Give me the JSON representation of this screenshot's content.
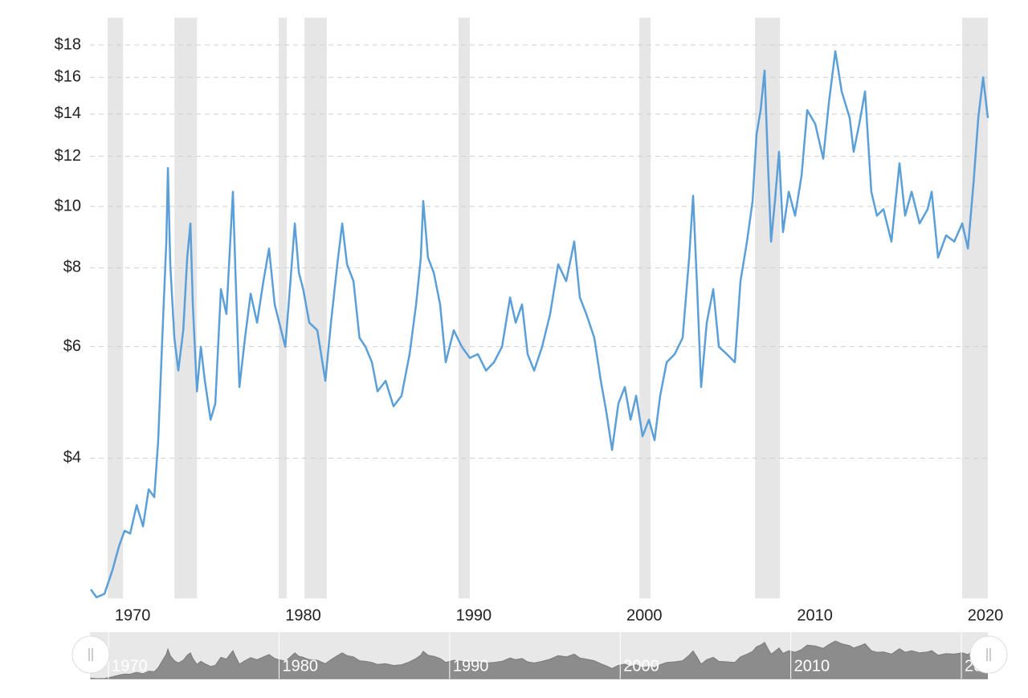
{
  "chart_data": {
    "type": "line",
    "log_scale": true,
    "grid": true,
    "color": "#5b9fd8",
    "shade_color": "#e6e6e6",
    "xlim": [
      1967.5,
      2020.14
    ],
    "ylim": [
      2.4,
      20
    ],
    "xticks": [
      1970,
      1980,
      1990,
      2000,
      2010,
      2020
    ],
    "yticks": [
      {
        "value": 4,
        "label": "$4"
      },
      {
        "value": 6,
        "label": "$6"
      },
      {
        "value": 8,
        "label": "$8"
      },
      {
        "value": 10,
        "label": "$10"
      },
      {
        "value": 12,
        "label": "$12"
      },
      {
        "value": 14,
        "label": "$14"
      },
      {
        "value": 16,
        "label": "$16"
      },
      {
        "value": 18,
        "label": "$18"
      }
    ],
    "recessions": [
      [
        1968.54,
        1969.44
      ],
      [
        1972.45,
        1973.77
      ],
      [
        1978.57,
        1979.04
      ],
      [
        1980.08,
        1981.39
      ],
      [
        1989.11,
        1989.77
      ],
      [
        1999.71,
        2000.37
      ],
      [
        2006.49,
        2007.95
      ],
      [
        2018.63,
        2020.14
      ]
    ],
    "x": [
      1967.55,
      1967.88,
      1968.35,
      1968.82,
      1969.2,
      1969.53,
      1969.86,
      1970.24,
      1970.61,
      1970.94,
      1971.27,
      1971.5,
      1971.74,
      1971.98,
      1972.07,
      1972.21,
      1972.45,
      1972.68,
      1972.97,
      1973.2,
      1973.39,
      1973.53,
      1973.77,
      1974.0,
      1974.24,
      1974.57,
      1974.85,
      1975.18,
      1975.5,
      1975.88,
      1976.03,
      1976.26,
      1976.59,
      1976.92,
      1977.3,
      1977.67,
      1978.0,
      1978.33,
      1978.71,
      1978.95,
      1979.18,
      1979.51,
      1979.75,
      1980.0,
      1980.36,
      1980.83,
      1981.3,
      1981.63,
      1982.0,
      1982.29,
      1982.57,
      1982.95,
      1983.3,
      1983.65,
      1984.03,
      1984.36,
      1984.83,
      1985.3,
      1985.77,
      1986.24,
      1986.62,
      1986.9,
      1987.04,
      1987.32,
      1987.66,
      1988.03,
      1988.36,
      1988.83,
      1989.3,
      1989.77,
      1990.24,
      1990.72,
      1991.19,
      1991.66,
      1992.13,
      1992.46,
      1992.83,
      1993.16,
      1993.54,
      1994.01,
      1994.48,
      1994.95,
      1995.42,
      1995.89,
      1996.22,
      1996.6,
      1997.07,
      1997.45,
      1997.78,
      1998.11,
      1998.48,
      1998.86,
      1999.19,
      1999.52,
      1999.9,
      2000.27,
      2000.6,
      2000.93,
      2001.31,
      2001.78,
      2002.25,
      2002.63,
      2002.86,
      2003.1,
      2003.33,
      2003.66,
      2004.04,
      2004.37,
      2004.84,
      2005.31,
      2005.64,
      2006.02,
      2006.35,
      2006.58,
      2006.82,
      2007.05,
      2007.24,
      2007.43,
      2007.66,
      2007.9,
      2008.13,
      2008.47,
      2008.84,
      2009.22,
      2009.55,
      2010.02,
      2010.49,
      2010.82,
      2011.2,
      2011.57,
      2012.04,
      2012.27,
      2012.6,
      2012.94,
      2013.31,
      2013.64,
      2014.02,
      2014.49,
      2014.96,
      2015.29,
      2015.67,
      2016.14,
      2016.61,
      2016.85,
      2017.22,
      2017.69,
      2018.17,
      2018.64,
      2018.97,
      2019.3,
      2019.58,
      2019.86,
      2020.14
    ],
    "values": [
      2.48,
      2.41,
      2.44,
      2.66,
      2.9,
      3.07,
      3.04,
      3.37,
      3.12,
      3.57,
      3.47,
      4.27,
      6.2,
      8.8,
      11.5,
      8.1,
      6.2,
      5.5,
      6.37,
      8.3,
      9.4,
      7.0,
      5.1,
      6.0,
      5.3,
      4.6,
      4.88,
      7.4,
      6.76,
      10.55,
      7.85,
      5.18,
      6.2,
      7.28,
      6.55,
      7.62,
      8.58,
      7.0,
      6.37,
      6.0,
      7.18,
      9.4,
      7.85,
      7.4,
      6.55,
      6.37,
      5.3,
      6.55,
      8.1,
      9.4,
      8.1,
      7.62,
      6.2,
      6.0,
      5.67,
      5.1,
      5.3,
      4.83,
      5.02,
      5.84,
      7.0,
      8.3,
      10.2,
      8.3,
      7.85,
      7.0,
      5.67,
      6.37,
      6.0,
      5.76,
      5.84,
      5.5,
      5.67,
      6.0,
      7.18,
      6.55,
      7.0,
      5.84,
      5.5,
      6.0,
      6.76,
      8.1,
      7.62,
      8.8,
      7.18,
      6.76,
      6.2,
      5.3,
      4.72,
      4.12,
      4.88,
      5.18,
      4.6,
      5.02,
      4.33,
      4.6,
      4.27,
      5.02,
      5.67,
      5.84,
      6.2,
      8.3,
      10.4,
      7.4,
      5.18,
      6.55,
      7.4,
      6.0,
      5.84,
      5.67,
      7.62,
      8.8,
      10.2,
      13.0,
      14.2,
      16.4,
      11.9,
      8.8,
      10.2,
      12.2,
      9.11,
      10.55,
      9.67,
      11.2,
      14.2,
      13.5,
      11.9,
      14.6,
      17.6,
      15.2,
      13.8,
      12.2,
      13.5,
      15.2,
      10.55,
      9.67,
      9.9,
      8.8,
      11.7,
      9.67,
      10.55,
      9.4,
      9.9,
      10.55,
      8.3,
      9.0,
      8.8,
      9.4,
      8.58,
      10.9,
      13.8,
      16.0,
      13.8
    ]
  }
}
